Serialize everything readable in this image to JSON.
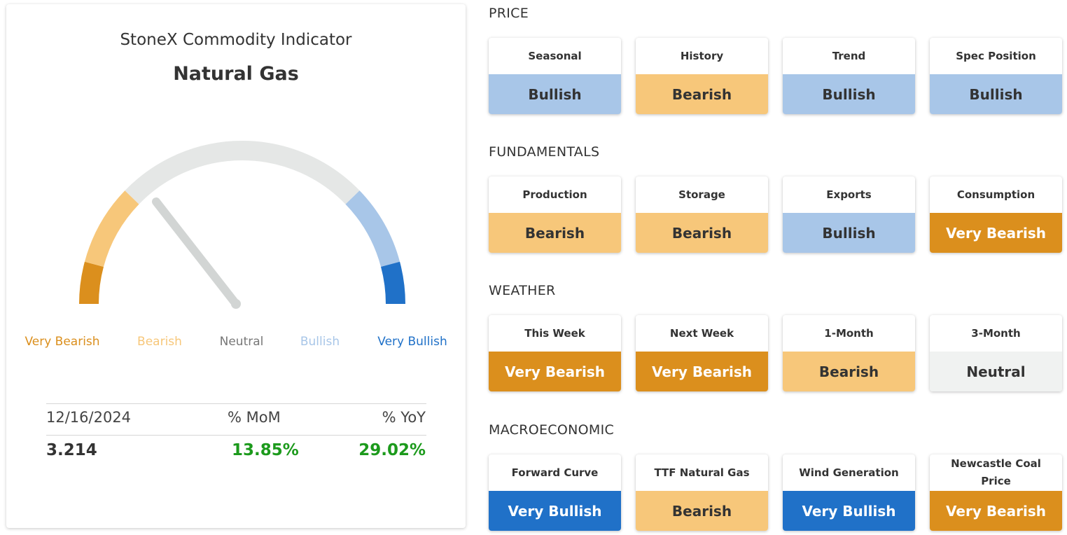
{
  "indicator": {
    "title": "StoneX Commodity Indicator",
    "commodity": "Natural Gas",
    "gauge_labels": [
      "Very Bearish",
      "Bearish",
      "Neutral",
      "Bullish",
      "Very Bullish"
    ],
    "needle_level": "Bearish",
    "stats": {
      "date": "12/16/2024",
      "mom_label": "% MoM",
      "yoy_label": "% YoY",
      "price": "3.214",
      "mom_value": "13.85%",
      "yoy_value": "29.02%"
    }
  },
  "sentiment_colors": {
    "Very Bearish": "#db8f1d",
    "Bearish": "#f7c77a",
    "Neutral": "#f0f2f1",
    "Bullish": "#a8c6e8",
    "Very Bullish": "#2071c8"
  },
  "sections": [
    {
      "title": "PRICE",
      "items": [
        {
          "label": "Seasonal",
          "value": "Bullish"
        },
        {
          "label": "History",
          "value": "Bearish"
        },
        {
          "label": "Trend",
          "value": "Bullish"
        },
        {
          "label": "Spec Position",
          "value": "Bullish"
        }
      ]
    },
    {
      "title": "FUNDAMENTALS",
      "items": [
        {
          "label": "Production",
          "value": "Bearish"
        },
        {
          "label": "Storage",
          "value": "Bearish"
        },
        {
          "label": "Exports",
          "value": "Bullish"
        },
        {
          "label": "Consumption",
          "value": "Very Bearish"
        }
      ]
    },
    {
      "title": "WEATHER",
      "items": [
        {
          "label": "This Week",
          "value": "Very Bearish"
        },
        {
          "label": "Next Week",
          "value": "Very Bearish"
        },
        {
          "label": "1-Month",
          "value": "Bearish"
        },
        {
          "label": "3-Month",
          "value": "Neutral"
        }
      ]
    },
    {
      "title": "MACROECONOMIC",
      "items": [
        {
          "label": "Forward Curve",
          "value": "Very Bullish"
        },
        {
          "label": "TTF Natural Gas",
          "value": "Bearish"
        },
        {
          "label": "Wind Generation",
          "value": "Very Bullish"
        },
        {
          "label": "Newcastle Coal Price",
          "value": "Very Bearish"
        }
      ]
    }
  ]
}
